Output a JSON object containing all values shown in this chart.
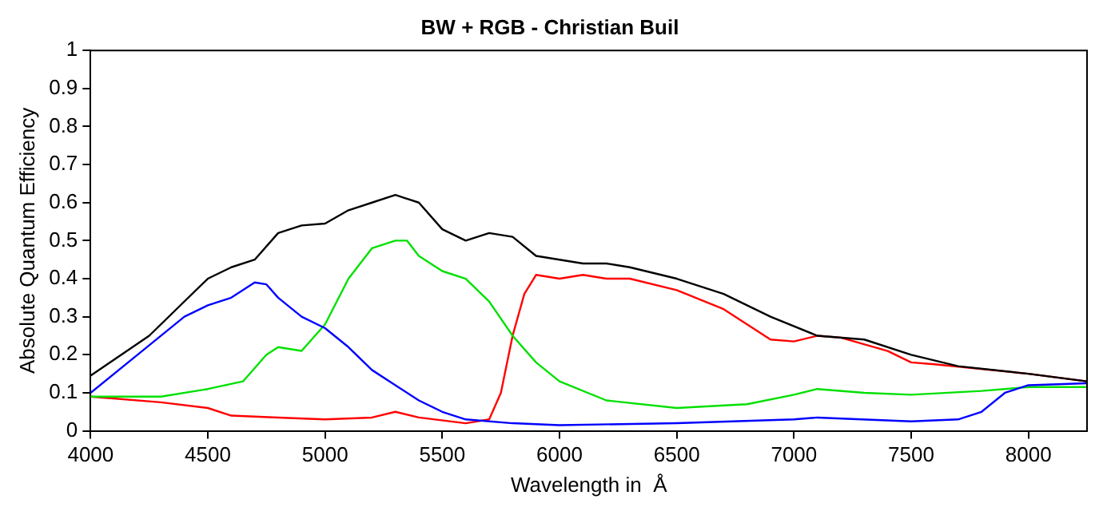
{
  "chart_data": {
    "type": "line",
    "title": "BW + RGB - Christian Buil",
    "xlabel": "Wavelength in  Å",
    "ylabel": "Absolute Quantum Efficiency",
    "xlim": [
      4000,
      8250
    ],
    "xticks": [
      4000,
      4500,
      5000,
      5500,
      6000,
      6500,
      7000,
      7500,
      8000
    ],
    "ylim": [
      0,
      1
    ],
    "yticks": [
      0,
      0.1,
      0.2,
      0.3,
      0.4,
      0.5,
      0.6,
      0.7,
      0.8,
      0.9,
      1
    ],
    "grid": false,
    "legend": false,
    "marker": "none",
    "line_style": "solid",
    "series": [
      {
        "color": "#000000",
        "x": [
          4000,
          4250,
          4500,
          4600,
          4700,
          4800,
          4900,
          5000,
          5100,
          5200,
          5300,
          5400,
          5500,
          5600,
          5700,
          5800,
          5900,
          6000,
          6100,
          6200,
          6300,
          6500,
          6700,
          6900,
          7100,
          7300,
          7500,
          7700,
          8000,
          8250
        ],
        "values": [
          0.145,
          0.25,
          0.4,
          0.43,
          0.45,
          0.52,
          0.54,
          0.545,
          0.58,
          0.6,
          0.62,
          0.6,
          0.53,
          0.5,
          0.52,
          0.51,
          0.46,
          0.45,
          0.44,
          0.44,
          0.43,
          0.4,
          0.36,
          0.3,
          0.25,
          0.24,
          0.2,
          0.17,
          0.15,
          0.13
        ]
      },
      {
        "color": "#0000ff",
        "x": [
          4000,
          4200,
          4400,
          4500,
          4600,
          4700,
          4750,
          4800,
          4900,
          5000,
          5100,
          5200,
          5300,
          5400,
          5500,
          5600,
          5800,
          6000,
          6500,
          7000,
          7100,
          7500,
          7700,
          7800,
          7900,
          8000,
          8250
        ],
        "values": [
          0.1,
          0.2,
          0.3,
          0.33,
          0.35,
          0.39,
          0.385,
          0.35,
          0.3,
          0.27,
          0.22,
          0.16,
          0.12,
          0.08,
          0.05,
          0.03,
          0.02,
          0.015,
          0.02,
          0.03,
          0.035,
          0.025,
          0.03,
          0.05,
          0.1,
          0.12,
          0.125
        ]
      },
      {
        "color": "#00e000",
        "x": [
          4000,
          4300,
          4500,
          4650,
          4750,
          4800,
          4900,
          5000,
          5100,
          5200,
          5300,
          5350,
          5400,
          5500,
          5600,
          5700,
          5800,
          5900,
          6000,
          6200,
          6500,
          6800,
          7000,
          7100,
          7300,
          7500,
          7800,
          8000,
          8250
        ],
        "values": [
          0.09,
          0.09,
          0.11,
          0.13,
          0.2,
          0.22,
          0.21,
          0.28,
          0.4,
          0.48,
          0.5,
          0.5,
          0.46,
          0.42,
          0.4,
          0.34,
          0.25,
          0.18,
          0.13,
          0.08,
          0.06,
          0.07,
          0.095,
          0.11,
          0.1,
          0.095,
          0.105,
          0.115,
          0.115
        ]
      },
      {
        "color": "#ff0000",
        "x": [
          4000,
          4300,
          4500,
          4600,
          4800,
          5000,
          5200,
          5300,
          5400,
          5600,
          5700,
          5750,
          5800,
          5850,
          5900,
          6000,
          6100,
          6200,
          6300,
          6500,
          6700,
          6900,
          7000,
          7100,
          7200,
          7400,
          7500,
          7600,
          8000,
          8250
        ],
        "values": [
          0.09,
          0.075,
          0.06,
          0.04,
          0.035,
          0.03,
          0.035,
          0.05,
          0.035,
          0.02,
          0.03,
          0.1,
          0.25,
          0.36,
          0.41,
          0.4,
          0.41,
          0.4,
          0.4,
          0.37,
          0.32,
          0.24,
          0.235,
          0.25,
          0.245,
          0.21,
          0.18,
          0.175,
          0.15,
          0.13
        ]
      }
    ]
  }
}
